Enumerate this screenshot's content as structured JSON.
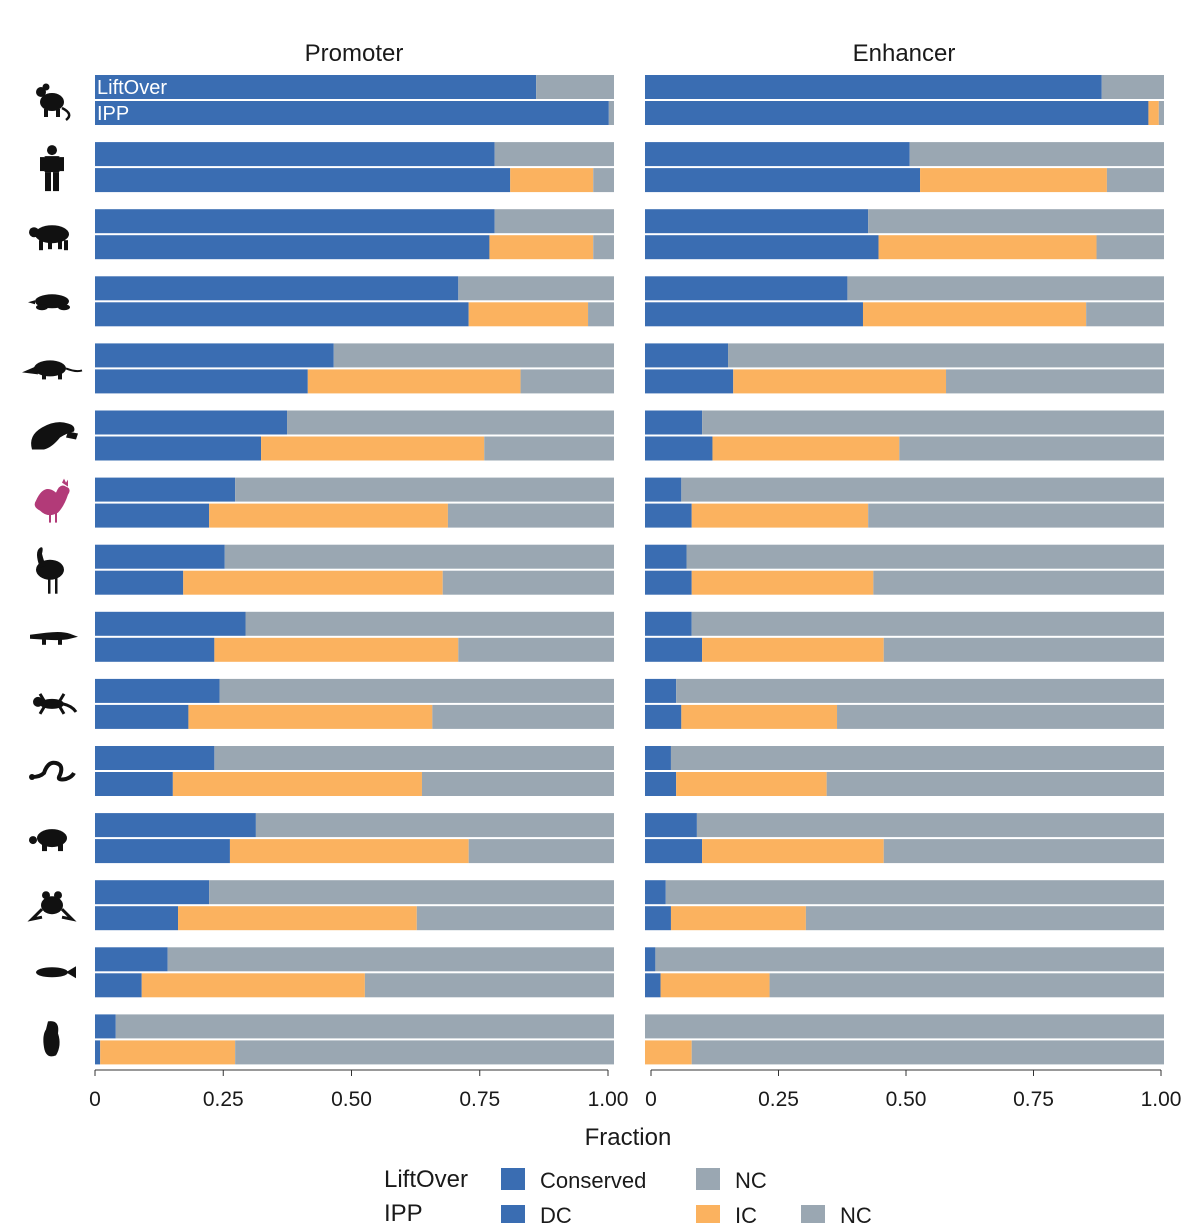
{
  "colors": {
    "conserved": "#3a6db2",
    "dc": "#3a6db2",
    "ic": "#fbb25f",
    "nc": "#9aa7b2",
    "species_highlight": "#b23a78",
    "species_default": "#111111"
  },
  "axis": {
    "xlabel": "Fraction",
    "ticks": [
      0,
      0.25,
      0.5,
      0.75,
      1.0
    ],
    "tick_labels": [
      "0",
      "0.25",
      "0.50",
      "0.75",
      "1.00"
    ]
  },
  "row_labels": {
    "liftover": "LiftOver",
    "ipp": "IPP"
  },
  "legend": {
    "liftover_title": "LiftOver",
    "ipp_title": "IPP",
    "liftover_items": [
      {
        "label": "Conserved",
        "key": "conserved"
      },
      {
        "label": "NC",
        "key": "nc"
      }
    ],
    "ipp_items": [
      {
        "label": "DC",
        "key": "dc"
      },
      {
        "label": "IC",
        "key": "ic"
      },
      {
        "label": "NC",
        "key": "nc"
      }
    ]
  },
  "species_icons": [
    "mouse-icon",
    "human-icon",
    "pig-icon",
    "mole-icon",
    "opossum-icon",
    "platypus-icon",
    "chicken-icon",
    "emu-icon",
    "crocodile-icon",
    "lizard-icon",
    "snake-icon",
    "turtle-icon",
    "frog-icon",
    "fish-icon",
    "lamprey-icon"
  ],
  "chart_data": [
    {
      "type": "bar",
      "orientation": "horizontal",
      "stacked": true,
      "title": "Promoter",
      "xlabel": "Fraction",
      "xlim": [
        0,
        1
      ],
      "rows": [
        {
          "liftover": [
            0.85,
            0.15
          ],
          "ipp": [
            0.99,
            0.0,
            0.01
          ]
        },
        {
          "liftover": [
            0.77,
            0.23
          ],
          "ipp": [
            0.8,
            0.16,
            0.04
          ]
        },
        {
          "liftover": [
            0.77,
            0.23
          ],
          "ipp": [
            0.76,
            0.2,
            0.04
          ]
        },
        {
          "liftover": [
            0.7,
            0.3
          ],
          "ipp": [
            0.72,
            0.23,
            0.05
          ]
        },
        {
          "liftover": [
            0.46,
            0.54
          ],
          "ipp": [
            0.41,
            0.41,
            0.18
          ]
        },
        {
          "liftover": [
            0.37,
            0.63
          ],
          "ipp": [
            0.32,
            0.43,
            0.25
          ]
        },
        {
          "liftover": [
            0.27,
            0.73
          ],
          "ipp": [
            0.22,
            0.46,
            0.32
          ]
        },
        {
          "liftover": [
            0.25,
            0.75
          ],
          "ipp": [
            0.17,
            0.5,
            0.33
          ]
        },
        {
          "liftover": [
            0.29,
            0.71
          ],
          "ipp": [
            0.23,
            0.47,
            0.3
          ]
        },
        {
          "liftover": [
            0.24,
            0.76
          ],
          "ipp": [
            0.18,
            0.47,
            0.35
          ]
        },
        {
          "liftover": [
            0.23,
            0.77
          ],
          "ipp": [
            0.15,
            0.48,
            0.37
          ]
        },
        {
          "liftover": [
            0.31,
            0.69
          ],
          "ipp": [
            0.26,
            0.46,
            0.28
          ]
        },
        {
          "liftover": [
            0.22,
            0.78
          ],
          "ipp": [
            0.16,
            0.46,
            0.38
          ]
        },
        {
          "liftover": [
            0.14,
            0.86
          ],
          "ipp": [
            0.09,
            0.43,
            0.48
          ]
        },
        {
          "liftover": [
            0.04,
            0.96
          ],
          "ipp": [
            0.01,
            0.26,
            0.73
          ]
        }
      ]
    },
    {
      "type": "bar",
      "orientation": "horizontal",
      "stacked": true,
      "title": "Enhancer",
      "xlabel": "Fraction",
      "xlim": [
        0,
        1
      ],
      "rows": [
        {
          "liftover": [
            0.88,
            0.12
          ],
          "ipp": [
            0.97,
            0.02,
            0.01
          ]
        },
        {
          "liftover": [
            0.51,
            0.49
          ],
          "ipp": [
            0.53,
            0.36,
            0.11
          ]
        },
        {
          "liftover": [
            0.43,
            0.57
          ],
          "ipp": [
            0.45,
            0.42,
            0.13
          ]
        },
        {
          "liftover": [
            0.39,
            0.61
          ],
          "ipp": [
            0.42,
            0.43,
            0.15
          ]
        },
        {
          "liftover": [
            0.16,
            0.84
          ],
          "ipp": [
            0.17,
            0.41,
            0.42
          ]
        },
        {
          "liftover": [
            0.11,
            0.89
          ],
          "ipp": [
            0.13,
            0.36,
            0.51
          ]
        },
        {
          "liftover": [
            0.07,
            0.93
          ],
          "ipp": [
            0.09,
            0.34,
            0.57
          ]
        },
        {
          "liftover": [
            0.08,
            0.92
          ],
          "ipp": [
            0.09,
            0.35,
            0.56
          ]
        },
        {
          "liftover": [
            0.09,
            0.91
          ],
          "ipp": [
            0.11,
            0.35,
            0.54
          ]
        },
        {
          "liftover": [
            0.06,
            0.94
          ],
          "ipp": [
            0.07,
            0.3,
            0.63
          ]
        },
        {
          "liftover": [
            0.05,
            0.95
          ],
          "ipp": [
            0.06,
            0.29,
            0.65
          ]
        },
        {
          "liftover": [
            0.1,
            0.9
          ],
          "ipp": [
            0.11,
            0.35,
            0.54
          ]
        },
        {
          "liftover": [
            0.04,
            0.96
          ],
          "ipp": [
            0.05,
            0.26,
            0.69
          ]
        },
        {
          "liftover": [
            0.02,
            0.98
          ],
          "ipp": [
            0.03,
            0.21,
            0.76
          ]
        },
        {
          "liftover": [
            0.0,
            1.0
          ],
          "ipp": [
            0.0,
            0.09,
            0.91
          ]
        }
      ]
    }
  ]
}
